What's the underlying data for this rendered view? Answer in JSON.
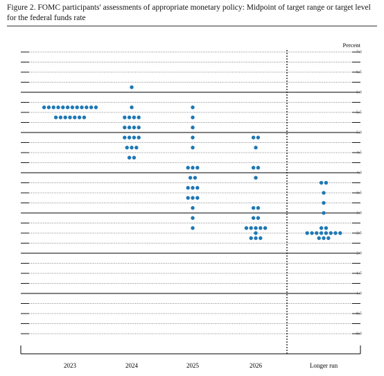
{
  "chart_data": {
    "type": "dot",
    "title": "Figure 2. FOMC participants' assessments of appropriate monetary policy: Midpoint of target range or target level for the federal funds rate",
    "y_label": "Percent",
    "categories": [
      "2023",
      "2024",
      "2025",
      "2026",
      "Longer run"
    ],
    "values": [
      [
        5.625,
        5.625,
        5.625,
        5.625,
        5.625,
        5.625,
        5.625,
        5.625,
        5.625,
        5.625,
        5.625,
        5.625,
        5.375,
        5.375,
        5.375,
        5.375,
        5.375,
        5.375,
        5.375
      ],
      [
        6.125,
        5.625,
        5.375,
        5.375,
        5.375,
        5.375,
        5.125,
        5.125,
        5.125,
        5.125,
        4.875,
        4.875,
        4.875,
        4.875,
        4.625,
        4.625,
        4.625,
        4.375,
        4.375
      ],
      [
        5.625,
        5.375,
        5.125,
        4.875,
        4.625,
        4.125,
        4.125,
        4.125,
        3.875,
        3.875,
        3.625,
        3.625,
        3.625,
        3.375,
        3.375,
        3.375,
        3.125,
        2.875,
        2.625
      ],
      [
        4.875,
        4.875,
        4.625,
        4.125,
        4.125,
        3.875,
        3.125,
        3.125,
        2.875,
        2.875,
        2.625,
        2.625,
        2.625,
        2.625,
        2.625,
        2.5,
        2.375,
        2.375,
        2.375
      ],
      [
        3.75,
        3.75,
        3.5,
        3.25,
        3.0,
        2.625,
        2.625,
        2.5,
        2.5,
        2.5,
        2.5,
        2.5,
        2.5,
        2.5,
        2.5,
        2.375,
        2.375,
        2.375
      ]
    ],
    "color": "#1f78b4",
    "ylim": [
      -0.5,
      7.0
    ],
    "yticks": [
      {
        "value": 0,
        "label": "0.0"
      },
      {
        "value": 0.5,
        "label": "0.5"
      },
      {
        "value": 1,
        "label": "1.0"
      },
      {
        "value": 1.5,
        "label": "1.5"
      },
      {
        "value": 2,
        "label": "2.0"
      },
      {
        "value": 2.5,
        "label": "2.5"
      },
      {
        "value": 3,
        "label": "3.0"
      },
      {
        "value": 3.5,
        "label": "3.5"
      },
      {
        "value": 4,
        "label": "4.0"
      },
      {
        "value": 4.5,
        "label": "4.5"
      },
      {
        "value": 5,
        "label": "5.0"
      },
      {
        "value": 5.5,
        "label": "5.5"
      },
      {
        "value": 6,
        "label": "6.0"
      },
      {
        "value": 6.5,
        "label": "6.5"
      },
      {
        "value": 7,
        "label": "7.0"
      }
    ],
    "grid": true
  }
}
